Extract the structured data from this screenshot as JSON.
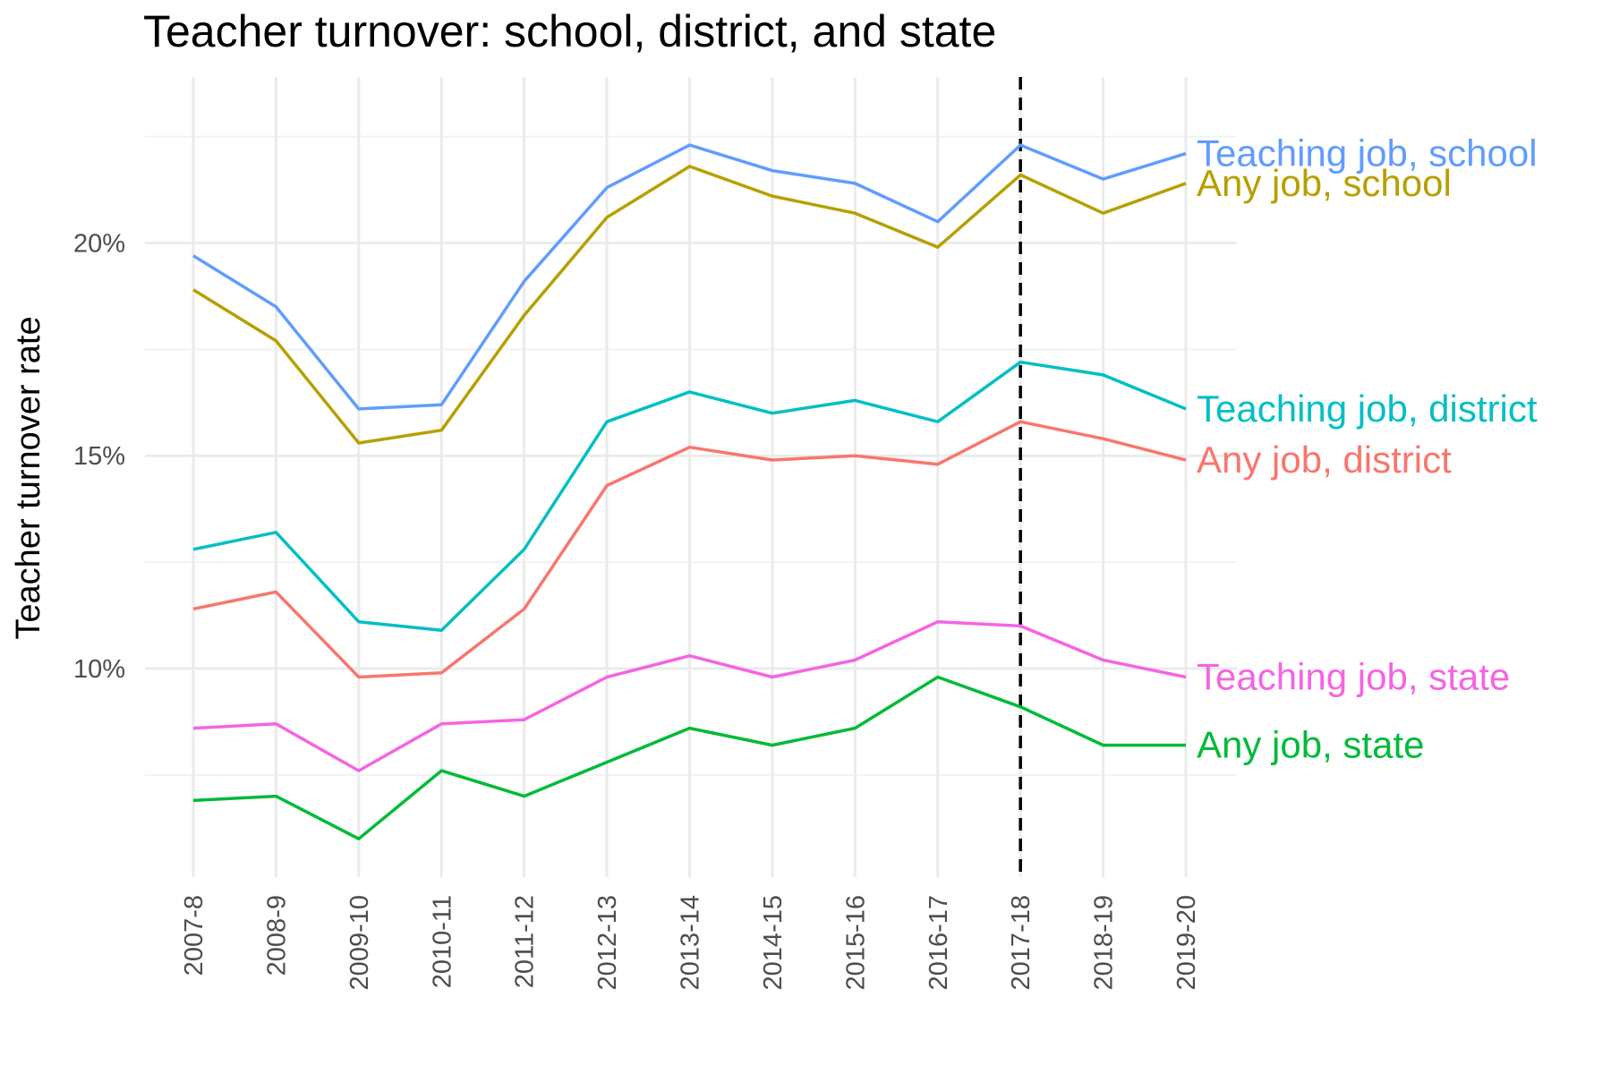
{
  "chart_data": {
    "type": "line",
    "title": "Teacher turnover: school, district, and state",
    "xlabel": "",
    "ylabel": "Teacher turnover rate",
    "categories": [
      "2007-8",
      "2008-9",
      "2009-10",
      "2010-11",
      "2011-12",
      "2012-13",
      "2013-14",
      "2014-15",
      "2015-16",
      "2016-17",
      "2017-18",
      "2018-19",
      "2019-20"
    ],
    "ylim": [
      5.1,
      23.9
    ],
    "yticks": [
      10,
      15,
      20
    ],
    "ytick_labels": [
      "10%",
      "15%",
      "20%"
    ],
    "y_minor_ticks": [
      7.5,
      12.5,
      17.5,
      22.5
    ],
    "grid": true,
    "vertical_reference_line": {
      "category": "2017-18",
      "style": "dashed",
      "color": "#000000"
    },
    "series": [
      {
        "name": "Teaching job, school",
        "color": "#619CFF",
        "values": [
          19.7,
          18.5,
          16.1,
          16.2,
          19.1,
          21.3,
          22.3,
          21.7,
          21.4,
          20.5,
          22.3,
          21.5,
          22.1
        ]
      },
      {
        "name": "Any job, school",
        "color": "#B79F00",
        "values": [
          18.9,
          17.7,
          15.3,
          15.6,
          18.3,
          20.6,
          21.8,
          21.1,
          20.7,
          19.9,
          21.6,
          20.7,
          21.4
        ]
      },
      {
        "name": "Teaching job, district",
        "color": "#00BFC4",
        "values": [
          12.8,
          13.2,
          11.1,
          10.9,
          12.8,
          15.8,
          16.5,
          16.0,
          16.3,
          15.8,
          17.2,
          16.9,
          16.1
        ]
      },
      {
        "name": "Any job, district",
        "color": "#F8766D",
        "values": [
          11.4,
          11.8,
          9.8,
          9.9,
          11.4,
          14.3,
          15.2,
          14.9,
          15.0,
          14.8,
          15.8,
          15.4,
          14.9
        ]
      },
      {
        "name": "Teaching job, state",
        "color": "#F564E3",
        "values": [
          8.6,
          8.7,
          7.6,
          8.7,
          8.8,
          9.8,
          10.3,
          9.8,
          10.2,
          11.1,
          11.0,
          10.2,
          9.8
        ]
      },
      {
        "name": "Any job, state",
        "color": "#00BA38",
        "values": [
          6.9,
          7.0,
          6.0,
          7.6,
          7.0,
          7.8,
          8.6,
          8.2,
          8.6,
          9.8,
          9.1,
          8.2,
          8.2
        ]
      }
    ]
  }
}
